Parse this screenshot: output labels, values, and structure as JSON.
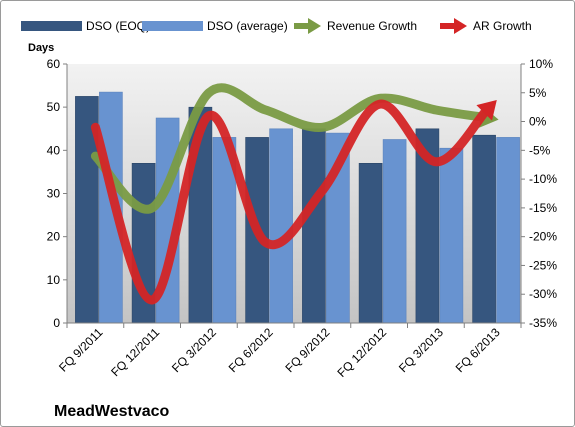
{
  "chart_data": {
    "type": "bar",
    "title": "",
    "brand_label": "MeadWestvaco",
    "ylabel": "Days",
    "ylim": [
      0,
      60
    ],
    "y_ticks": [
      0,
      10,
      20,
      30,
      40,
      50,
      60
    ],
    "y2lim": [
      -35,
      10
    ],
    "y2_ticks": [
      "-35%",
      "-30%",
      "-25%",
      "-20%",
      "-15%",
      "-10%",
      "-5%",
      "0%",
      "5%",
      "10%"
    ],
    "y2_tick_values": [
      -35,
      -30,
      -25,
      -20,
      -15,
      -10,
      -5,
      0,
      5,
      10
    ],
    "categories": [
      "FQ 9/2011",
      "FQ 12/2011",
      "FQ 3/2012",
      "FQ 6/2012",
      "FQ 9/2012",
      "FQ 12/2012",
      "FQ 3/2013",
      "FQ 6/2013"
    ],
    "series": [
      {
        "name": "DSO (EOQ)",
        "type": "bar",
        "axis": "left",
        "color": "#36567f",
        "values": [
          52.5,
          37,
          50,
          43,
          45,
          37,
          45,
          43.5
        ]
      },
      {
        "name": "DSO (average)",
        "type": "bar",
        "axis": "left",
        "color": "#6893d0",
        "values": [
          53.5,
          47.5,
          43,
          45,
          44,
          42.5,
          40.5,
          43
        ]
      },
      {
        "name": "Revenue Growth",
        "type": "line",
        "axis": "right",
        "color": "#7a9b45",
        "values": [
          -6,
          -15,
          5,
          2,
          -1,
          4,
          2,
          0.5
        ]
      },
      {
        "name": "AR Growth",
        "type": "line",
        "axis": "right",
        "color": "#d42526",
        "values": [
          -1,
          -31,
          1,
          -21,
          -12,
          3,
          -7,
          3
        ]
      }
    ],
    "legend_position": "top",
    "grid": false
  }
}
